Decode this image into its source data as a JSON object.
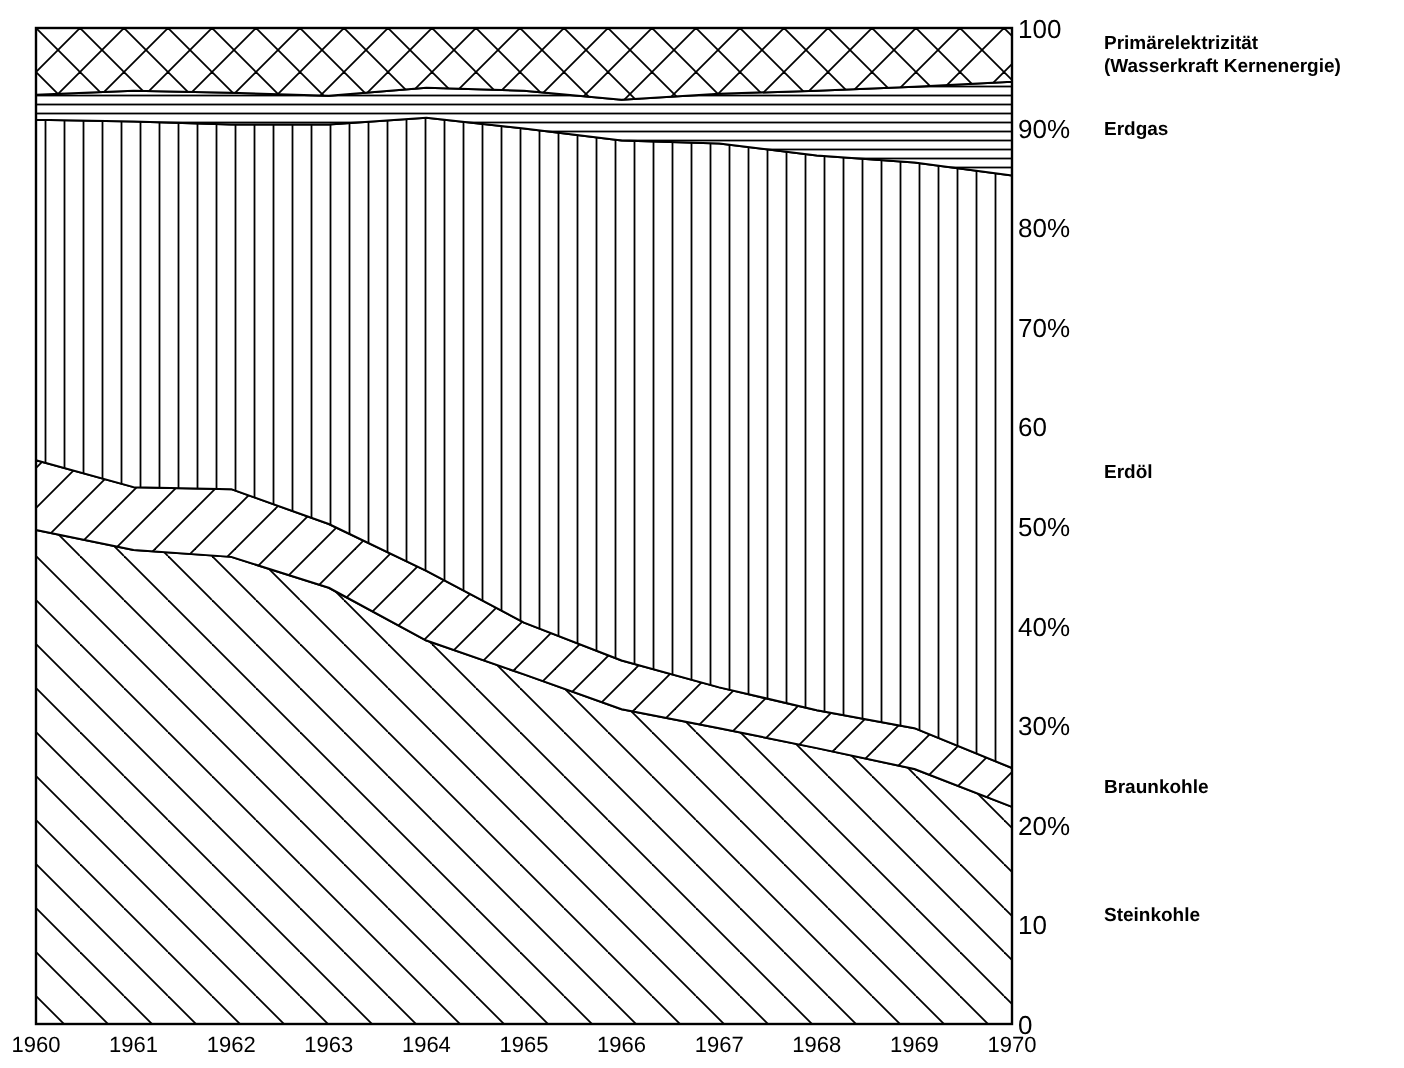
{
  "chart_data": {
    "type": "area",
    "stacked": true,
    "x": [
      1960,
      1961,
      1962,
      1963,
      1964,
      1965,
      1966,
      1967,
      1968,
      1969,
      1970
    ],
    "xlim": [
      1960,
      1970
    ],
    "xticks": [
      1960,
      1961,
      1962,
      1963,
      1964,
      1965,
      1966,
      1967,
      1968,
      1969,
      1970
    ],
    "ylim": [
      0,
      100
    ],
    "yticks": [
      0,
      10,
      {
        "value": 20,
        "label": "20%"
      },
      {
        "value": 30,
        "label": "30%"
      },
      {
        "value": 40,
        "label": "40%"
      },
      {
        "value": 50,
        "label": "50%"
      },
      60,
      {
        "value": 70,
        "label": "70%"
      },
      {
        "value": 80,
        "label": "80%"
      },
      {
        "value": 90,
        "label": "90%"
      },
      100
    ],
    "legend": false,
    "series": [
      {
        "name": "Steinkohle",
        "color": "#000000",
        "values": [
          49.6,
          47.6,
          46.9,
          43.8,
          38.5,
          35.1,
          31.6,
          29.7,
          27.7,
          25.6,
          21.8
        ]
      },
      {
        "name": "Braunkohle",
        "color": "#000000",
        "values": [
          7.0,
          6.3,
          6.8,
          6.4,
          7.0,
          5.2,
          4.9,
          4.1,
          3.8,
          4.1,
          3.9
        ]
      },
      {
        "name": "Erdöl",
        "color": "#000000",
        "values": [
          34.2,
          36.7,
          36.6,
          40.1,
          45.5,
          49.6,
          52.2,
          54.6,
          55.7,
          56.8,
          59.5
        ]
      },
      {
        "name": "Erdgas",
        "color": "#000000",
        "values": [
          2.5,
          3.1,
          3.2,
          2.9,
          3.0,
          3.8,
          4.1,
          5.0,
          6.5,
          7.6,
          9.4
        ]
      },
      {
        "name": "Primärelektrizität (Wasserkraft Kernenergie)",
        "color": "#000000",
        "values": [
          6.7,
          6.3,
          6.5,
          6.8,
          6.0,
          6.3,
          7.2,
          6.6,
          6.3,
          5.9,
          5.4
        ]
      }
    ]
  }
}
